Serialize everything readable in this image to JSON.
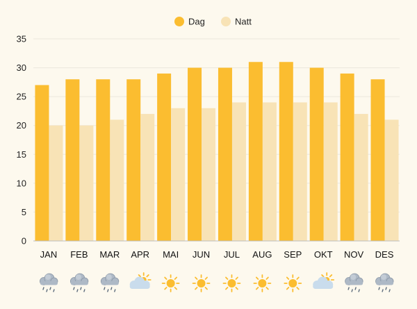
{
  "chart_data": {
    "type": "bar",
    "categories": [
      "JAN",
      "FEB",
      "MAR",
      "APR",
      "MAI",
      "JUN",
      "JUL",
      "AUG",
      "SEP",
      "OKT",
      "NOV",
      "DES"
    ],
    "series": [
      {
        "name": "Dag",
        "values": [
          27,
          28,
          28,
          28,
          29,
          30,
          30,
          31,
          31,
          30,
          29,
          28
        ],
        "color": "#fbbd30"
      },
      {
        "name": "Natt",
        "values": [
          20,
          20,
          21,
          22,
          23,
          23,
          24,
          24,
          24,
          24,
          22,
          21
        ],
        "color": "#f8e3b6"
      }
    ],
    "yticks": [
      "0",
      "5",
      "10",
      "15",
      "20",
      "25",
      "30",
      "35"
    ],
    "ylim": [
      0,
      35
    ],
    "grid": true,
    "legend_position": "top-center",
    "weather_icons": [
      "rain-cloud-icon",
      "rain-cloud-icon",
      "rain-cloud-icon",
      "partly-cloudy-icon",
      "sun-icon",
      "sun-icon",
      "sun-icon",
      "sun-icon",
      "sun-icon",
      "partly-cloudy-icon",
      "rain-cloud-icon",
      "rain-cloud-icon"
    ]
  },
  "colors": {
    "background": "#fdf9ee",
    "grid": "#ece8dc",
    "axis": "#bdbdbd",
    "sun": "#fbbd30",
    "cloud": "#c9dcec",
    "cloud_dark": "#8d9bab",
    "rain": "#5e6d7d"
  }
}
